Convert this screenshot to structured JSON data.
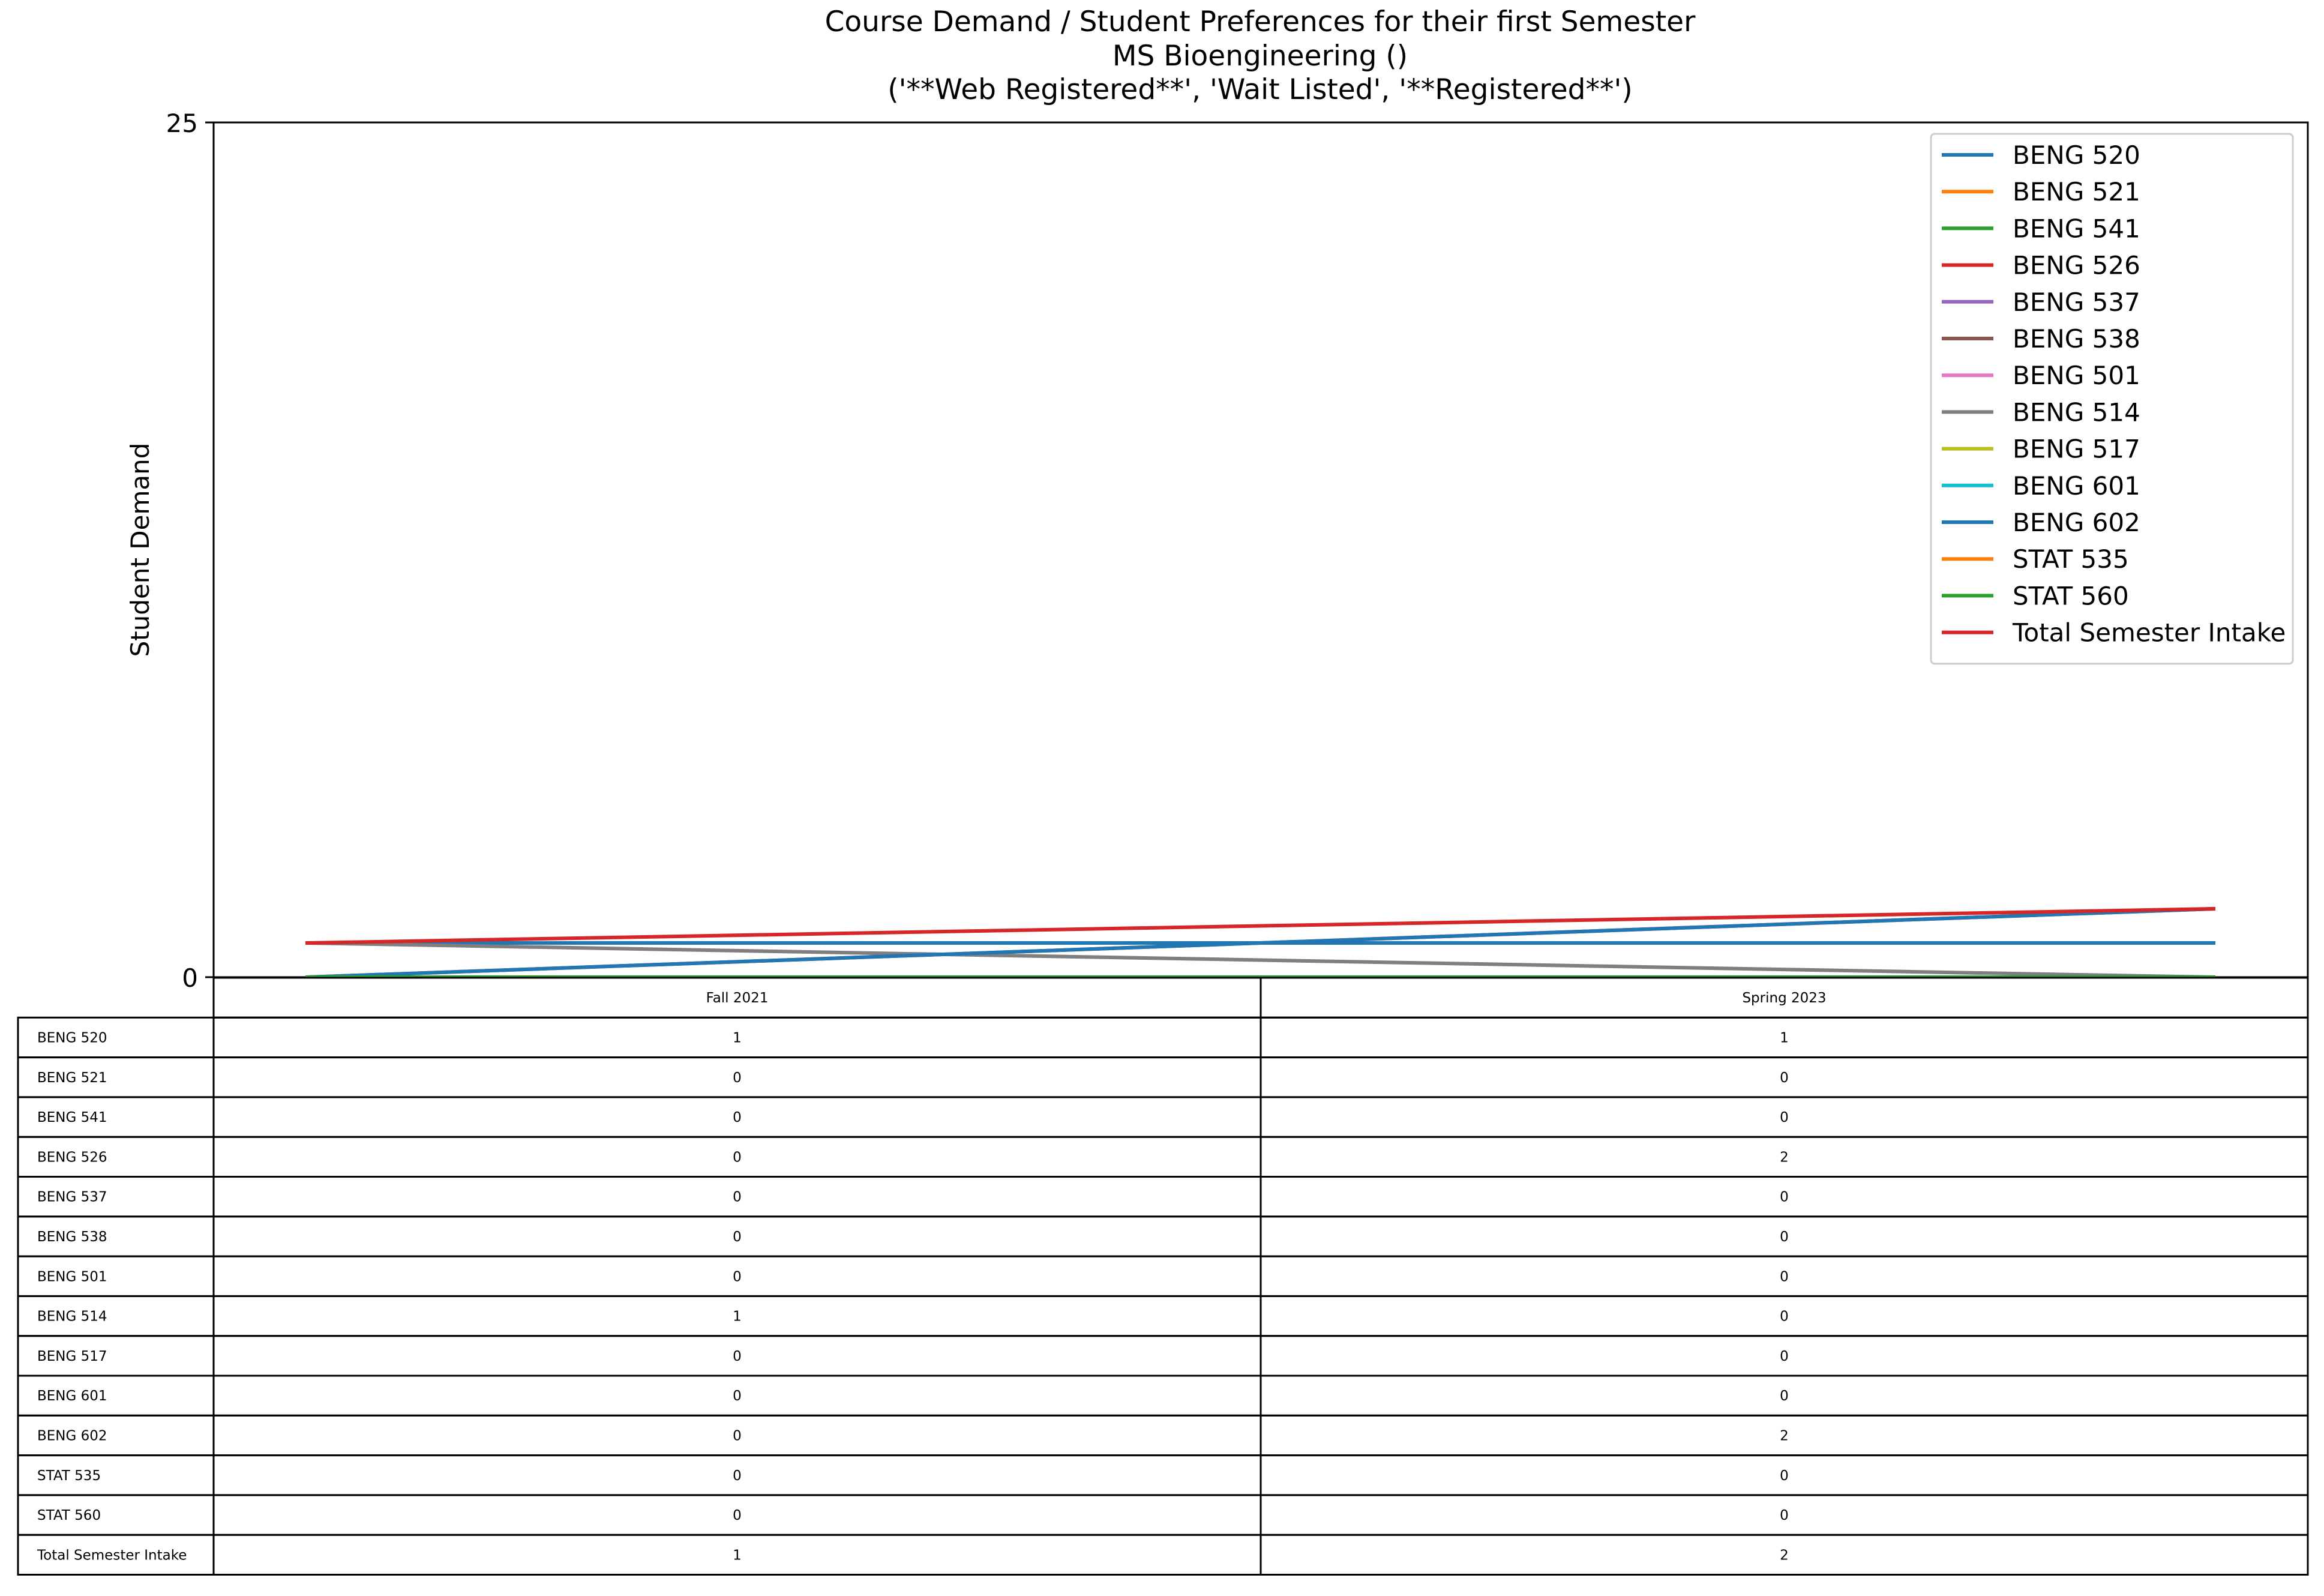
{
  "chart_data": {
    "type": "line",
    "title_lines": [
      "Course Demand / Student Preferences for their first Semester",
      "MS Bioengineering ()",
      "('**Web Registered**', 'Wait Listed', '**Registered**')"
    ],
    "xlabel": "",
    "ylabel": "Student Demand",
    "ylim": [
      0,
      25
    ],
    "y_ticks": [
      0,
      25
    ],
    "categories": [
      "Fall 2021",
      "Spring 2023"
    ],
    "legend_position": "top-right",
    "series": [
      {
        "name": "BENG 520",
        "color": "#1f77b4",
        "values": [
          1,
          1
        ]
      },
      {
        "name": "BENG 521",
        "color": "#ff7f0e",
        "values": [
          0,
          0
        ]
      },
      {
        "name": "BENG 541",
        "color": "#2ca02c",
        "values": [
          0,
          0
        ]
      },
      {
        "name": "BENG 526",
        "color": "#d62728",
        "values": [
          0,
          2
        ]
      },
      {
        "name": "BENG 537",
        "color": "#9467bd",
        "values": [
          0,
          0
        ]
      },
      {
        "name": "BENG 538",
        "color": "#8c564b",
        "values": [
          0,
          0
        ]
      },
      {
        "name": "BENG 501",
        "color": "#e377c2",
        "values": [
          0,
          0
        ]
      },
      {
        "name": "BENG 514",
        "color": "#7f7f7f",
        "values": [
          1,
          0
        ]
      },
      {
        "name": "BENG 517",
        "color": "#bcbd22",
        "values": [
          0,
          0
        ]
      },
      {
        "name": "BENG 601",
        "color": "#17becf",
        "values": [
          0,
          0
        ]
      },
      {
        "name": "BENG 602",
        "color": "#1f77b4",
        "values": [
          0,
          2
        ]
      },
      {
        "name": "STAT 535",
        "color": "#ff7f0e",
        "values": [
          0,
          0
        ]
      },
      {
        "name": "STAT 560",
        "color": "#2ca02c",
        "values": [
          0,
          0
        ]
      },
      {
        "name": "Total Semester Intake",
        "color": "#d62728",
        "values": [
          1,
          2
        ]
      }
    ]
  }
}
